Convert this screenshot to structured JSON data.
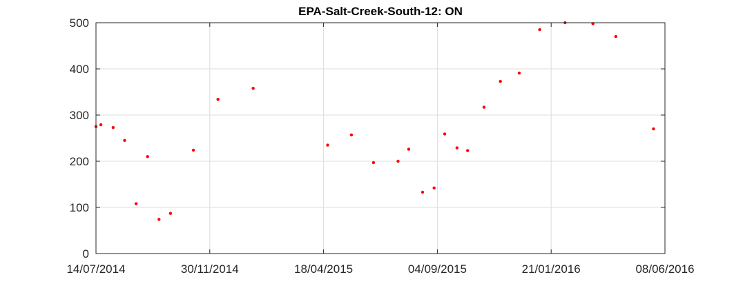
{
  "chart_data": {
    "type": "scatter",
    "title": "EPA-Salt-Creek-South-12: ON",
    "xlabel": "",
    "ylabel": "",
    "x_axis_type": "date",
    "xlim": [
      "2014-07-14",
      "2016-06-08"
    ],
    "ylim": [
      0,
      500
    ],
    "x_ticks": [
      "2014-07-14",
      "2014-11-30",
      "2015-04-18",
      "2015-09-04",
      "2016-01-21",
      "2016-06-08"
    ],
    "x_tick_labels": [
      "14/07/2014",
      "30/11/2014",
      "18/04/2015",
      "04/09/2015",
      "21/01/2016",
      "08/06/2016"
    ],
    "y_ticks": [
      0,
      100,
      200,
      300,
      400,
      500
    ],
    "y_tick_labels": [
      "0",
      "100",
      "200",
      "300",
      "400",
      "500"
    ],
    "grid": true,
    "marker_color": "#ff0000",
    "axis_color": "#262626",
    "grid_color": "#dcdcdc",
    "series": [
      {
        "points": [
          {
            "x": "2014-07-14",
            "y": 275
          },
          {
            "x": "2014-07-20",
            "y": 279
          },
          {
            "x": "2014-08-04",
            "y": 273
          },
          {
            "x": "2014-08-18",
            "y": 245
          },
          {
            "x": "2014-09-01",
            "y": 108
          },
          {
            "x": "2014-09-15",
            "y": 210
          },
          {
            "x": "2014-09-29",
            "y": 74
          },
          {
            "x": "2014-10-13",
            "y": 87
          },
          {
            "x": "2014-11-10",
            "y": 224
          },
          {
            "x": "2014-12-10",
            "y": 334
          },
          {
            "x": "2015-01-22",
            "y": 358
          },
          {
            "x": "2015-04-23",
            "y": 235
          },
          {
            "x": "2015-05-22",
            "y": 257
          },
          {
            "x": "2015-06-18",
            "y": 197
          },
          {
            "x": "2015-07-18",
            "y": 200
          },
          {
            "x": "2015-07-31",
            "y": 226
          },
          {
            "x": "2015-08-17",
            "y": 133
          },
          {
            "x": "2015-08-31",
            "y": 142
          },
          {
            "x": "2015-09-13",
            "y": 259
          },
          {
            "x": "2015-09-28",
            "y": 229
          },
          {
            "x": "2015-10-11",
            "y": 223
          },
          {
            "x": "2015-10-31",
            "y": 317
          },
          {
            "x": "2015-11-20",
            "y": 373
          },
          {
            "x": "2015-12-13",
            "y": 391
          },
          {
            "x": "2016-01-07",
            "y": 485
          },
          {
            "x": "2016-02-07",
            "y": 500
          },
          {
            "x": "2016-03-12",
            "y": 498
          },
          {
            "x": "2016-04-09",
            "y": 470
          },
          {
            "x": "2016-05-25",
            "y": 270
          }
        ]
      }
    ]
  }
}
